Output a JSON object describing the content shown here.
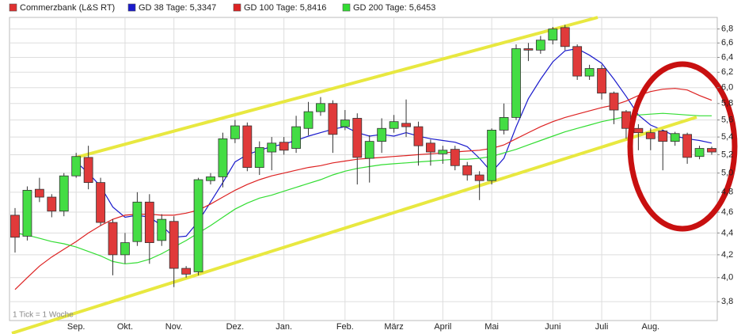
{
  "chart_data": {
    "type": "candlestick",
    "log_scale": true,
    "grid": true,
    "note": "1 Tick = 1 Woche",
    "categories": [
      null,
      null,
      null,
      null,
      null,
      "Sep.",
      null,
      null,
      null,
      "Okt.",
      null,
      null,
      null,
      "Nov.",
      null,
      null,
      null,
      null,
      "Dez.",
      null,
      null,
      null,
      "Jan.",
      null,
      null,
      null,
      null,
      "Feb.",
      null,
      null,
      null,
      "März",
      null,
      null,
      null,
      "April",
      null,
      null,
      null,
      "Mai",
      null,
      null,
      null,
      null,
      "Juni",
      null,
      null,
      null,
      "Juli",
      null,
      null,
      null,
      "Aug.",
      null,
      null,
      null,
      null,
      null
    ],
    "series": [
      {
        "name": "Commerzbank (L&S RT)",
        "type": "candlestick",
        "color": "#e03030",
        "up_color": "#44dd44",
        "down_color": "#e03a3a",
        "open": [
          4.57,
          4.37,
          4.83,
          4.75,
          4.61,
          4.97,
          5.17,
          4.9,
          4.5,
          4.2,
          4.32,
          4.7,
          4.33,
          4.51,
          4.08,
          4.05,
          4.92,
          4.96,
          5.38,
          5.53,
          5.06,
          5.23,
          5.34,
          5.27,
          5.5,
          5.7,
          5.8,
          5.52,
          5.62,
          5.16,
          5.35,
          5.5,
          5.56,
          5.52,
          5.33,
          5.21,
          5.26,
          5.08,
          4.98,
          4.92,
          5.48,
          5.63,
          6.52,
          6.5,
          6.64,
          6.82,
          6.55,
          6.15,
          6.25,
          5.93,
          5.7,
          5.5,
          5.45,
          5.47,
          5.35,
          5.43,
          5.18,
          5.27
        ],
        "high": [
          4.64,
          4.86,
          4.95,
          4.78,
          5.0,
          5.22,
          5.3,
          4.95,
          4.53,
          4.4,
          4.8,
          4.78,
          4.58,
          4.56,
          4.1,
          4.95,
          5.0,
          5.45,
          5.6,
          5.57,
          5.35,
          5.4,
          5.4,
          5.65,
          5.82,
          5.88,
          5.84,
          5.72,
          5.68,
          5.42,
          5.62,
          5.66,
          5.85,
          5.58,
          5.37,
          5.3,
          5.3,
          5.12,
          5.02,
          5.5,
          5.8,
          6.58,
          6.6,
          6.7,
          6.83,
          6.86,
          6.58,
          6.3,
          6.3,
          5.95,
          5.72,
          5.55,
          5.5,
          5.48,
          5.46,
          5.45,
          5.3,
          5.29
        ],
        "low": [
          4.22,
          4.33,
          4.7,
          4.55,
          4.56,
          4.95,
          4.83,
          4.47,
          4.02,
          4.12,
          4.28,
          4.12,
          4.28,
          3.92,
          4.0,
          4.02,
          4.88,
          4.85,
          5.33,
          5.02,
          4.98,
          5.03,
          5.2,
          5.22,
          5.42,
          5.65,
          5.22,
          5.48,
          4.88,
          4.9,
          5.22,
          5.45,
          5.4,
          5.08,
          5.08,
          5.1,
          5.03,
          4.92,
          4.72,
          4.88,
          5.43,
          5.6,
          6.35,
          6.45,
          6.58,
          6.5,
          6.1,
          6.1,
          5.85,
          5.55,
          5.38,
          5.25,
          5.25,
          5.03,
          5.3,
          5.1,
          5.15,
          5.2
        ],
        "close": [
          4.36,
          4.82,
          4.75,
          4.61,
          4.97,
          5.18,
          4.9,
          4.5,
          4.2,
          4.31,
          4.7,
          4.31,
          4.53,
          4.08,
          4.03,
          4.93,
          4.96,
          5.38,
          5.53,
          5.06,
          5.28,
          5.33,
          5.25,
          5.52,
          5.7,
          5.8,
          5.43,
          5.6,
          5.17,
          5.35,
          5.5,
          5.58,
          5.52,
          5.3,
          5.23,
          5.25,
          5.08,
          4.98,
          4.92,
          5.48,
          5.63,
          6.52,
          6.5,
          6.64,
          6.8,
          6.55,
          6.15,
          6.25,
          5.93,
          5.72,
          5.5,
          5.45,
          5.38,
          5.35,
          5.44,
          5.17,
          5.27,
          5.23
        ]
      },
      {
        "name": "GD 38 Tage: 5,3347",
        "type": "line",
        "color": "#1a1acc",
        "values": [
          null,
          null,
          null,
          null,
          null,
          5.12,
          5.0,
          4.86,
          4.65,
          4.55,
          4.57,
          4.55,
          4.47,
          4.36,
          4.37,
          4.51,
          4.7,
          4.9,
          5.12,
          5.2,
          5.25,
          5.29,
          5.32,
          5.36,
          5.41,
          5.45,
          5.49,
          5.52,
          5.45,
          5.41,
          5.43,
          5.41,
          5.45,
          5.41,
          5.38,
          5.36,
          5.34,
          5.29,
          5.16,
          5.01,
          5.16,
          5.52,
          5.86,
          6.11,
          6.34,
          6.49,
          6.52,
          6.43,
          6.32,
          6.11,
          5.89,
          5.66,
          5.54,
          5.48,
          5.41,
          5.38,
          5.36,
          5.33
        ]
      },
      {
        "name": "GD 100 Tage: 5,8416",
        "type": "line",
        "color": "#dd2222",
        "values": [
          3.9,
          4.0,
          4.1,
          4.18,
          4.25,
          4.32,
          4.4,
          4.47,
          4.53,
          4.57,
          4.58,
          4.58,
          4.57,
          4.57,
          4.59,
          4.62,
          4.68,
          4.75,
          4.82,
          4.88,
          4.93,
          4.97,
          5.0,
          5.03,
          5.06,
          5.08,
          5.11,
          5.13,
          5.15,
          5.16,
          5.17,
          5.18,
          5.19,
          5.2,
          5.21,
          5.22,
          5.23,
          5.24,
          5.25,
          5.27,
          5.31,
          5.38,
          5.45,
          5.52,
          5.58,
          5.63,
          5.67,
          5.71,
          5.75,
          5.78,
          5.83,
          5.9,
          5.95,
          5.98,
          5.99,
          5.97,
          5.9,
          5.84
        ]
      },
      {
        "name": "GD 200 Tage: 5,6453",
        "type": "line",
        "color": "#33dd33",
        "values": [
          4.4,
          4.38,
          4.35,
          4.32,
          4.3,
          4.27,
          4.23,
          4.19,
          4.14,
          4.12,
          4.13,
          4.16,
          4.21,
          4.27,
          4.33,
          4.4,
          4.47,
          4.55,
          4.63,
          4.69,
          4.74,
          4.77,
          4.81,
          4.85,
          4.89,
          4.93,
          4.98,
          5.02,
          5.05,
          5.07,
          5.09,
          5.1,
          5.11,
          5.12,
          5.13,
          5.14,
          5.15,
          5.15,
          5.16,
          5.18,
          5.22,
          5.26,
          5.31,
          5.36,
          5.41,
          5.46,
          5.5,
          5.54,
          5.58,
          5.61,
          5.64,
          5.66,
          5.67,
          5.68,
          5.67,
          5.66,
          5.65,
          5.65
        ]
      }
    ],
    "ylim": [
      3.65,
      6.97
    ],
    "yticks": [
      {
        "value": 3.8,
        "label": "3,8"
      },
      {
        "value": 4.0,
        "label": "4,0"
      },
      {
        "value": 4.2,
        "label": "4,2"
      },
      {
        "value": 4.4,
        "label": "4,4"
      },
      {
        "value": 4.6,
        "label": "4,6"
      },
      {
        "value": 4.8,
        "label": "4,8"
      },
      {
        "value": 5.0,
        "label": "5,0"
      },
      {
        "value": 5.2,
        "label": "5,2"
      },
      {
        "value": 5.4,
        "label": "5,4"
      },
      {
        "value": 5.6,
        "label": "5,6"
      },
      {
        "value": 5.8,
        "label": "5,8"
      },
      {
        "value": 6.0,
        "label": "6,0"
      },
      {
        "value": 6.2,
        "label": "6,2"
      },
      {
        "value": 6.4,
        "label": "6,4"
      },
      {
        "value": 6.6,
        "label": "6,6"
      },
      {
        "value": 6.8,
        "label": "6,8"
      }
    ]
  }
}
